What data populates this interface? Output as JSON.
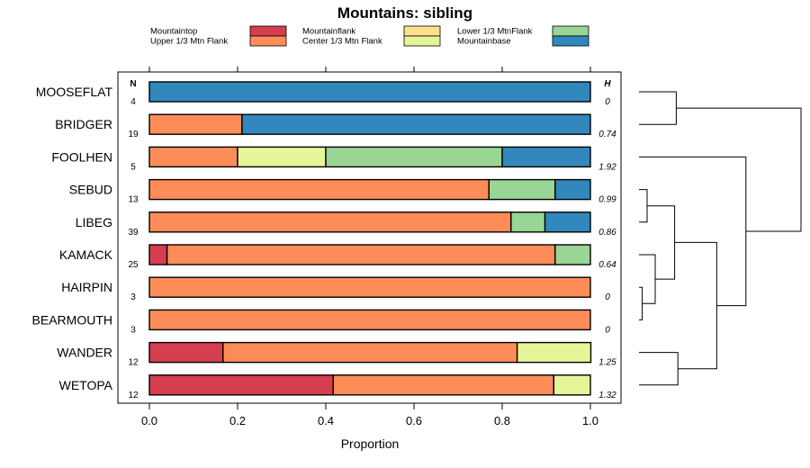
{
  "chart_data": {
    "type": "bar",
    "stacked": "horizontal-proportion",
    "title": "Mountains: sibling",
    "xlabel": "Proportion",
    "xlim": [
      0,
      1
    ],
    "xticks": [
      "0.0",
      "0.2",
      "0.4",
      "0.6",
      "0.8",
      "1.0"
    ],
    "n_header": "N",
    "h_header": "H",
    "legend": [
      {
        "name": "Mountaintop",
        "color": "#d53e4f"
      },
      {
        "name": "Upper 1/3 Mtn Flank",
        "color": "#fc8d59"
      },
      {
        "name": "Mountainflank",
        "color": "#fee08b"
      },
      {
        "name": "Center 1/3 Mtn Flank",
        "color": "#e6f598"
      },
      {
        "name": "Lower 1/3 MtnFlank",
        "color": "#99d594"
      },
      {
        "name": "Mountainbase",
        "color": "#3288bd"
      }
    ],
    "categories": [
      "MOOSEFLAT",
      "BRIDGER",
      "FOOLHEN",
      "SEBUD",
      "LIBEG",
      "KAMACK",
      "HAIRPIN",
      "BEARMOUTH",
      "WANDER",
      "WETOPA"
    ],
    "n_values": [
      "4",
      "19",
      "5",
      "13",
      "39",
      "25",
      "3",
      "3",
      "12",
      "12"
    ],
    "h_values": [
      "0",
      "0.74",
      "1.92",
      "0.99",
      "0.86",
      "0.64",
      "0",
      "0",
      "1.25",
      "1.32"
    ],
    "series": [
      {
        "name": "Mountaintop",
        "values": [
          0,
          0,
          0,
          0,
          0,
          0.04,
          0,
          0,
          0.167,
          0.417
        ]
      },
      {
        "name": "Upper 1/3 Mtn Flank",
        "values": [
          0,
          0.21,
          0.2,
          0.77,
          0.82,
          0.88,
          1,
          1,
          0.667,
          0.5
        ]
      },
      {
        "name": "Mountainflank",
        "values": [
          0,
          0,
          0,
          0,
          0,
          0,
          0,
          0,
          0,
          0
        ]
      },
      {
        "name": "Center 1/3 Mtn Flank",
        "values": [
          0,
          0,
          0.2,
          0,
          0,
          0,
          0,
          0,
          0.167,
          0.083
        ]
      },
      {
        "name": "Lower 1/3 MtnFlank",
        "values": [
          0,
          0,
          0.4,
          0.15,
          0.077,
          0.08,
          0,
          0,
          0,
          0
        ]
      },
      {
        "name": "Mountainbase",
        "values": [
          1,
          0.79,
          0.2,
          0.08,
          0.103,
          0,
          0,
          0,
          0,
          0
        ]
      }
    ],
    "dendrogram": {
      "leaf_order": [
        "MOOSEFLAT",
        "BRIDGER",
        "FOOLHEN",
        "SEBUD",
        "LIBEG",
        "KAMACK",
        "HAIRPIN",
        "BEARMOUTH",
        "WANDER",
        "WETOPA"
      ],
      "merges": [
        {
          "a": [
            "HAIRPIN"
          ],
          "b": [
            "BEARMOUTH"
          ],
          "height": 0.02
        },
        {
          "a": [
            "SEBUD"
          ],
          "b": [
            "LIBEG"
          ],
          "height": 0.05
        },
        {
          "a": [
            "HAIRPIN",
            "BEARMOUTH"
          ],
          "b": [
            "KAMACK"
          ],
          "height": 0.1
        },
        {
          "a": [
            "SEBUD",
            "LIBEG"
          ],
          "b": [
            "KAMACK",
            "HAIRPIN",
            "BEARMOUTH"
          ],
          "height": 0.22
        },
        {
          "a": [
            "MOOSEFLAT"
          ],
          "b": [
            "BRIDGER"
          ],
          "height": 0.23
        },
        {
          "a": [
            "WANDER"
          ],
          "b": [
            "WETOPA"
          ],
          "height": 0.24
        },
        {
          "a": [
            "SEBUD",
            "LIBEG",
            "KAMACK",
            "HAIRPIN",
            "BEARMOUTH"
          ],
          "b": [
            "WANDER",
            "WETOPA"
          ],
          "height": 0.48
        },
        {
          "a": [
            "FOOLHEN"
          ],
          "b": [
            "SEBUD",
            "LIBEG",
            "KAMACK",
            "HAIRPIN",
            "BEARMOUTH",
            "WANDER",
            "WETOPA"
          ],
          "height": 0.66
        },
        {
          "a": [
            "MOOSEFLAT",
            "BRIDGER"
          ],
          "b": [
            "FOOLHEN",
            "SEBUD",
            "LIBEG",
            "KAMACK",
            "HAIRPIN",
            "BEARMOUTH",
            "WANDER",
            "WETOPA"
          ],
          "height": 1.0
        }
      ]
    }
  }
}
